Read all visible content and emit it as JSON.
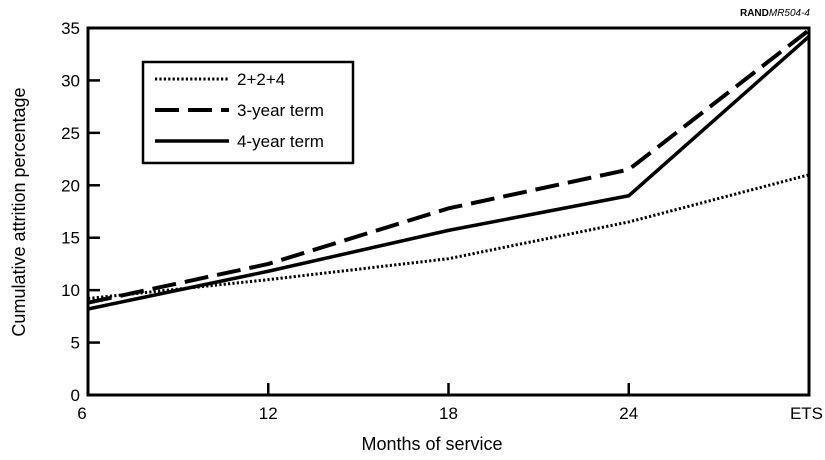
{
  "chart_data": {
    "type": "line",
    "source_tag": {
      "prefix": "RAND",
      "code": "MR504-4"
    },
    "title": "",
    "xlabel": "Months of service",
    "ylabel": "Cumulative attrition percentage",
    "categories": [
      "6",
      "12",
      "18",
      "24",
      "ETS"
    ],
    "ylim": [
      0,
      35
    ],
    "yticks": [
      0,
      5,
      10,
      15,
      20,
      25,
      30,
      35
    ],
    "grid": false,
    "legend_position": "top-left",
    "series": [
      {
        "name": "2+2+4",
        "style": "dotted",
        "color": "#000000",
        "values": [
          9.2,
          11.0,
          13.0,
          16.5,
          21.0
        ]
      },
      {
        "name": "3-year term",
        "style": "dashed",
        "color": "#000000",
        "values": [
          8.8,
          12.5,
          17.8,
          21.5,
          34.8
        ]
      },
      {
        "name": "4-year term",
        "style": "solid",
        "color": "#000000",
        "values": [
          8.2,
          11.8,
          15.7,
          19.0,
          34.2
        ]
      }
    ]
  }
}
